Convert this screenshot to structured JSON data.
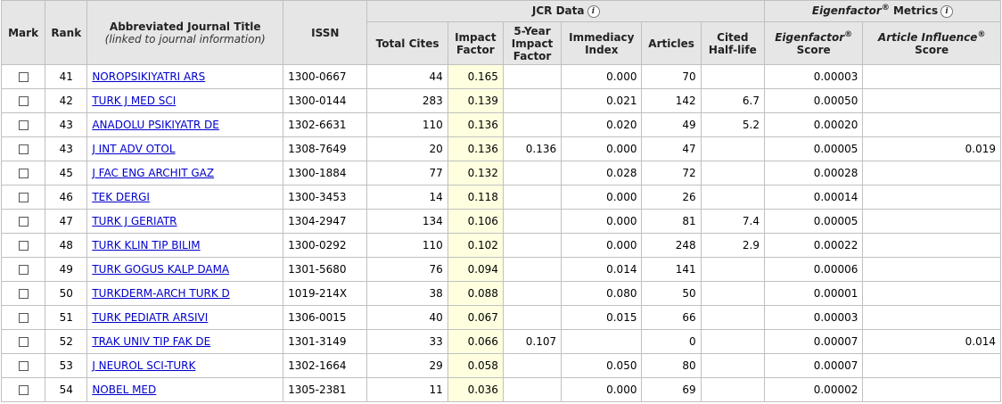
{
  "header": {
    "mark": "Mark",
    "rank": "Rank",
    "title": "Abbreviated Journal Title",
    "title_sub": "(linked to journal information)",
    "issn": "ISSN",
    "jcr_group": "JCR Data",
    "eigen_group_italic": "Eigenfactor",
    "eigen_group_rest": " Metrics",
    "total_cites": "Total Cites",
    "impact_factor": "Impact Factor",
    "five_year": "5-Year Impact Factor",
    "immediacy": "Immediacy Index",
    "articles": "Articles",
    "cited_half_life": "Cited Half-life",
    "eigen_score_italic": "Eigenfactor",
    "eigen_score_rest": "Score",
    "ai_score_italic": "Article Influence",
    "ai_score_rest": "Score",
    "registered": "®",
    "info_glyph": "i"
  },
  "rows": [
    {
      "rank": "41",
      "title": "NOROPSIKIYATRI ARS",
      "issn": "1300-0667",
      "cites": "44",
      "impact": "0.165",
      "five": "",
      "immediacy": "0.000",
      "articles": "70",
      "halflife": "",
      "eigen": "0.00003",
      "ai": ""
    },
    {
      "rank": "42",
      "title": "TURK J MED SCI",
      "issn": "1300-0144",
      "cites": "283",
      "impact": "0.139",
      "five": "",
      "immediacy": "0.021",
      "articles": "142",
      "halflife": "6.7",
      "eigen": "0.00050",
      "ai": ""
    },
    {
      "rank": "43",
      "title": "ANADOLU PSIKIYATR DE",
      "issn": "1302-6631",
      "cites": "110",
      "impact": "0.136",
      "five": "",
      "immediacy": "0.020",
      "articles": "49",
      "halflife": "5.2",
      "eigen": "0.00020",
      "ai": ""
    },
    {
      "rank": "43",
      "title": "J INT ADV OTOL",
      "issn": "1308-7649",
      "cites": "20",
      "impact": "0.136",
      "five": "0.136",
      "immediacy": "0.000",
      "articles": "47",
      "halflife": "",
      "eigen": "0.00005",
      "ai": "0.019"
    },
    {
      "rank": "45",
      "title": "J FAC ENG ARCHIT GAZ",
      "issn": "1300-1884",
      "cites": "77",
      "impact": "0.132",
      "five": "",
      "immediacy": "0.028",
      "articles": "72",
      "halflife": "",
      "eigen": "0.00028",
      "ai": ""
    },
    {
      "rank": "46",
      "title": "TEK DERGI",
      "issn": "1300-3453",
      "cites": "14",
      "impact": "0.118",
      "five": "",
      "immediacy": "0.000",
      "articles": "26",
      "halflife": "",
      "eigen": "0.00014",
      "ai": ""
    },
    {
      "rank": "47",
      "title": "TURK J GERIATR",
      "issn": "1304-2947",
      "cites": "134",
      "impact": "0.106",
      "five": "",
      "immediacy": "0.000",
      "articles": "81",
      "halflife": "7.4",
      "eigen": "0.00005",
      "ai": ""
    },
    {
      "rank": "48",
      "title": "TURK KLIN TIP BILIM",
      "issn": "1300-0292",
      "cites": "110",
      "impact": "0.102",
      "five": "",
      "immediacy": "0.000",
      "articles": "248",
      "halflife": "2.9",
      "eigen": "0.00022",
      "ai": ""
    },
    {
      "rank": "49",
      "title": "TURK GOGUS KALP DAMA",
      "issn": "1301-5680",
      "cites": "76",
      "impact": "0.094",
      "five": "",
      "immediacy": "0.014",
      "articles": "141",
      "halflife": "",
      "eigen": "0.00006",
      "ai": ""
    },
    {
      "rank": "50",
      "title": "TURKDERM-ARCH TURK D",
      "issn": "1019-214X",
      "cites": "38",
      "impact": "0.088",
      "five": "",
      "immediacy": "0.080",
      "articles": "50",
      "halflife": "",
      "eigen": "0.00001",
      "ai": ""
    },
    {
      "rank": "51",
      "title": "TURK PEDIATR ARSIVI",
      "issn": "1306-0015",
      "cites": "40",
      "impact": "0.067",
      "five": "",
      "immediacy": "0.015",
      "articles": "66",
      "halflife": "",
      "eigen": "0.00003",
      "ai": ""
    },
    {
      "rank": "52",
      "title": "TRAK UNIV TIP FAK DE",
      "issn": "1301-3149",
      "cites": "33",
      "impact": "0.066",
      "five": "0.107",
      "immediacy": "",
      "articles": "0",
      "halflife": "",
      "eigen": "0.00007",
      "ai": "0.014"
    },
    {
      "rank": "53",
      "title": "J NEUROL SCI-TURK",
      "issn": "1302-1664",
      "cites": "29",
      "impact": "0.058",
      "five": "",
      "immediacy": "0.050",
      "articles": "80",
      "halflife": "",
      "eigen": "0.00007",
      "ai": ""
    },
    {
      "rank": "54",
      "title": "NOBEL MED",
      "issn": "1305-2381",
      "cites": "11",
      "impact": "0.036",
      "five": "",
      "immediacy": "0.000",
      "articles": "69",
      "halflife": "",
      "eigen": "0.00002",
      "ai": ""
    }
  ]
}
